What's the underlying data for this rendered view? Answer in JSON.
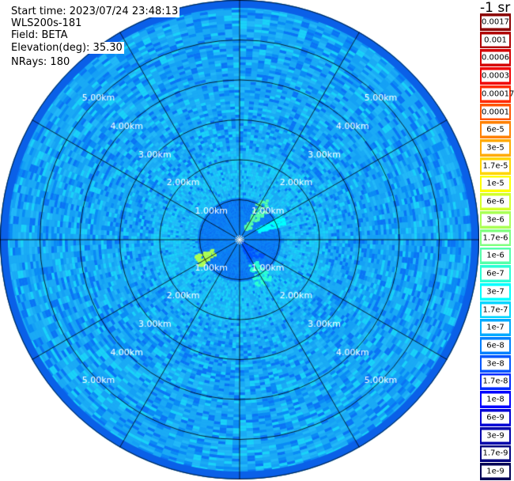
{
  "info": {
    "start_time": "Start time: 2023/07/24 23:48:13",
    "device": "WLS200s-181",
    "field": "Field: BETA",
    "elevation": "Elevation(deg): 35.30",
    "nrays": "NRays: 180"
  },
  "colorbar": {
    "unit": "-1 sr",
    "levels": [
      {
        "label": "0.0017",
        "color": "#8b0000"
      },
      {
        "label": "0.001",
        "color": "#b00000"
      },
      {
        "label": "0.0006",
        "color": "#d40000"
      },
      {
        "label": "0.0003",
        "color": "#f00000"
      },
      {
        "label": "0.00017",
        "color": "#ff2a00"
      },
      {
        "label": "0.0001",
        "color": "#ff5500"
      },
      {
        "label": "6e-5",
        "color": "#ff8000"
      },
      {
        "label": "3e-5",
        "color": "#ffaa00"
      },
      {
        "label": "1.7e-5",
        "color": "#ffd500"
      },
      {
        "label": "1e-5",
        "color": "#ffff00"
      },
      {
        "label": "6e-6",
        "color": "#d4ff2a"
      },
      {
        "label": "3e-6",
        "color": "#aaff55"
      },
      {
        "label": "1.7e-6",
        "color": "#80ff80"
      },
      {
        "label": "1e-6",
        "color": "#55ffaa"
      },
      {
        "label": "6e-7",
        "color": "#2affd5"
      },
      {
        "label": "3e-7",
        "color": "#00ffff"
      },
      {
        "label": "1.7e-7",
        "color": "#00d5ff"
      },
      {
        "label": "1e-7",
        "color": "#00aaff"
      },
      {
        "label": "6e-8",
        "color": "#0080ff"
      },
      {
        "label": "3e-8",
        "color": "#0055ff"
      },
      {
        "label": "1.7e-8",
        "color": "#002aff"
      },
      {
        "label": "1e-8",
        "color": "#0000ff"
      },
      {
        "label": "6e-9",
        "color": "#0000d4"
      },
      {
        "label": "3e-9",
        "color": "#0000aa"
      },
      {
        "label": "1.7e-9",
        "color": "#000080"
      },
      {
        "label": "1e-9",
        "color": "#000055"
      }
    ]
  },
  "chart_data": {
    "type": "heatmap",
    "projection": "polar-ppi",
    "field": "BETA",
    "unit": "-1 sr",
    "scale": "log",
    "range_rings_km": [
      1,
      2,
      3,
      4,
      5
    ],
    "ring_labels": [
      "1.00km",
      "2.00km",
      "3.00km",
      "4.00km",
      "5.00km"
    ],
    "max_range_km": 6.0,
    "spokes_deg": [
      0,
      30,
      60,
      90,
      120,
      150,
      180,
      210,
      240,
      270,
      300,
      330
    ],
    "label_azimuths_deg": [
      45,
      135,
      225,
      315
    ],
    "background_color": "#1aaaf5",
    "near_field_km": 1.0,
    "near_field_color": "#0a74f5",
    "mid_field_color": "#1ad2f8",
    "features": [
      {
        "azimuth_deg": [
          25,
          45
        ],
        "range_km": [
          0.3,
          1.25
        ],
        "level": "1e-6"
      },
      {
        "azimuth_deg": [
          60,
          72
        ],
        "range_km": [
          0.45,
          1.25
        ],
        "level": "3e-7"
      },
      {
        "azimuth_deg": [
          122,
          158
        ],
        "range_km": [
          0.1,
          0.75
        ],
        "level": "3e-8"
      },
      {
        "azimuth_deg": [
          140,
          160
        ],
        "range_km": [
          0.7,
          1.3
        ],
        "level": "6e-7"
      },
      {
        "azimuth_deg": [
          235,
          250
        ],
        "range_km": [
          0.7,
          1.2
        ],
        "level": "3e-6"
      }
    ]
  }
}
